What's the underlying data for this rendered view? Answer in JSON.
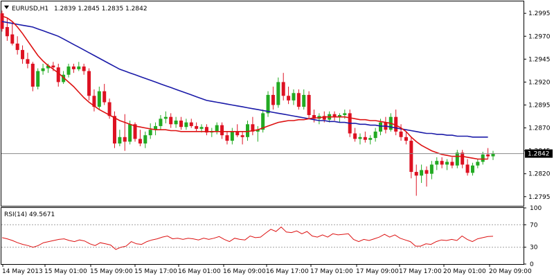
{
  "header": {
    "symbol": "EURUSD,H1",
    "ohlc": "1.2839 1.2845 1.2835 1.2842"
  },
  "colors": {
    "bull": "#22aa22",
    "bear": "#dd1122",
    "ma_fast": "#dd1111",
    "ma_slow": "#1a1aa8",
    "rsi": "#dd1111",
    "current_price_box": "#000000"
  },
  "chart_data": [
    {
      "type": "candlestick",
      "title": "EURUSD,H1",
      "ylim": [
        1.2785,
        1.3008
      ],
      "y_ticks": [
        "1.2995",
        "1.2970",
        "1.2945",
        "1.2920",
        "1.2895",
        "1.2870",
        "1.2845",
        "1.2820",
        "1.2795"
      ],
      "current_price": "1.2842",
      "x_ticks": [
        "14 May 2013",
        "15 May 01:00",
        "15 May 09:00",
        "15 May 17:00",
        "16 May 01:00",
        "16 May 09:00",
        "16 May 17:00",
        "17 May 01:00",
        "17 May 09:00",
        "17 May 17:00",
        "20 May 01:00",
        "20 May 09:00"
      ],
      "candles": [
        [
          1.2995,
          1.2998,
          1.2975,
          1.2978
        ],
        [
          1.298,
          1.299,
          1.2965,
          1.297
        ],
        [
          1.2972,
          1.2985,
          1.296,
          1.2962
        ],
        [
          1.2962,
          1.297,
          1.295,
          1.2955
        ],
        [
          1.2955,
          1.296,
          1.294,
          1.2945
        ],
        [
          1.2945,
          1.2952,
          1.2935,
          1.294
        ],
        [
          1.294,
          1.2942,
          1.291,
          1.2915
        ],
        [
          1.2915,
          1.2935,
          1.2912,
          1.2932
        ],
        [
          1.2932,
          1.294,
          1.2928,
          1.2935
        ],
        [
          1.2935,
          1.294,
          1.293,
          1.2938
        ],
        [
          1.2938,
          1.2942,
          1.2932,
          1.2936
        ],
        [
          1.2936,
          1.294,
          1.2915,
          1.292
        ],
        [
          1.292,
          1.2932,
          1.2918,
          1.2928
        ],
        [
          1.2928,
          1.294,
          1.2925,
          1.2937
        ],
        [
          1.2937,
          1.294,
          1.293,
          1.2934
        ],
        [
          1.2934,
          1.2942,
          1.2932,
          1.2937
        ],
        [
          1.2937,
          1.294,
          1.2928,
          1.2932
        ],
        [
          1.2932,
          1.2935,
          1.29,
          1.2905
        ],
        [
          1.2905,
          1.2912,
          1.2888,
          1.2893
        ],
        [
          1.2893,
          1.2915,
          1.289,
          1.291
        ],
        [
          1.291,
          1.2918,
          1.2895,
          1.2898
        ],
        [
          1.2898,
          1.2902,
          1.288,
          1.2883
        ],
        [
          1.2883,
          1.2888,
          1.2848,
          1.2853
        ],
        [
          1.2853,
          1.2868,
          1.285,
          1.286
        ],
        [
          1.286,
          1.2885,
          1.2845,
          1.2855
        ],
        [
          1.2855,
          1.2878,
          1.2852,
          1.2874
        ],
        [
          1.2874,
          1.2876,
          1.2855,
          1.2858
        ],
        [
          1.2858,
          1.2868,
          1.285,
          1.2853
        ],
        [
          1.2853,
          1.2866,
          1.2848,
          1.2862
        ],
        [
          1.2862,
          1.2875,
          1.2858,
          1.2868
        ],
        [
          1.2868,
          1.2876,
          1.2862,
          1.2872
        ],
        [
          1.2872,
          1.2884,
          1.2868,
          1.288
        ],
        [
          1.288,
          1.2888,
          1.2875,
          1.2882
        ],
        [
          1.2882,
          1.2886,
          1.287,
          1.2874
        ],
        [
          1.2874,
          1.2882,
          1.287,
          1.2878
        ],
        [
          1.2878,
          1.2882,
          1.2868,
          1.2871
        ],
        [
          1.2871,
          1.288,
          1.2868,
          1.2876
        ],
        [
          1.2876,
          1.288,
          1.287,
          1.2872
        ],
        [
          1.2872,
          1.2876,
          1.2866,
          1.2869
        ],
        [
          1.2869,
          1.2874,
          1.2865,
          1.2871
        ],
        [
          1.2871,
          1.2874,
          1.2862,
          1.2865
        ],
        [
          1.2865,
          1.287,
          1.286,
          1.2866
        ],
        [
          1.2866,
          1.2876,
          1.2863,
          1.2873
        ],
        [
          1.2873,
          1.2876,
          1.2858,
          1.2862
        ],
        [
          1.2862,
          1.2866,
          1.2852,
          1.2856
        ],
        [
          1.2856,
          1.287,
          1.2852,
          1.2866
        ],
        [
          1.2866,
          1.2874,
          1.286,
          1.2862
        ],
        [
          1.2862,
          1.2866,
          1.2852,
          1.286
        ],
        [
          1.286,
          1.2878,
          1.2856,
          1.2874
        ],
        [
          1.2874,
          1.2882,
          1.2862,
          1.2866
        ],
        [
          1.2866,
          1.2872,
          1.2855,
          1.2868
        ],
        [
          1.2868,
          1.289,
          1.2865,
          1.2886
        ],
        [
          1.2886,
          1.291,
          1.2882,
          1.2906
        ],
        [
          1.2906,
          1.2915,
          1.289,
          1.2895
        ],
        [
          1.2895,
          1.2925,
          1.2892,
          1.292
        ],
        [
          1.292,
          1.293,
          1.29,
          1.2905
        ],
        [
          1.2905,
          1.2915,
          1.2896,
          1.29
        ],
        [
          1.29,
          1.2912,
          1.2895,
          1.2908
        ],
        [
          1.2908,
          1.2912,
          1.289,
          1.2893
        ],
        [
          1.2893,
          1.2912,
          1.289,
          1.2906
        ],
        [
          1.2906,
          1.291,
          1.288,
          1.2884
        ],
        [
          1.2884,
          1.289,
          1.2876,
          1.288
        ],
        [
          1.288,
          1.2886,
          1.2874,
          1.2883
        ],
        [
          1.2883,
          1.2888,
          1.2876,
          1.2879
        ],
        [
          1.2879,
          1.2888,
          1.2876,
          1.2885
        ],
        [
          1.2885,
          1.2888,
          1.2878,
          1.2882
        ],
        [
          1.2882,
          1.2886,
          1.2876,
          1.2884
        ],
        [
          1.2884,
          1.289,
          1.288,
          1.2886
        ],
        [
          1.2886,
          1.289,
          1.286,
          1.2864
        ],
        [
          1.2864,
          1.287,
          1.2855,
          1.2858
        ],
        [
          1.2858,
          1.2864,
          1.2852,
          1.286
        ],
        [
          1.286,
          1.2866,
          1.2854,
          1.2857
        ],
        [
          1.2857,
          1.2862,
          1.2852,
          1.2859
        ],
        [
          1.2859,
          1.287,
          1.2855,
          1.2866
        ],
        [
          1.2866,
          1.288,
          1.2862,
          1.2876
        ],
        [
          1.2876,
          1.2882,
          1.2864,
          1.2868
        ],
        [
          1.2868,
          1.2886,
          1.2866,
          1.2882
        ],
        [
          1.2882,
          1.289,
          1.2862,
          1.2866
        ],
        [
          1.2866,
          1.2874,
          1.2856,
          1.286
        ],
        [
          1.286,
          1.2866,
          1.2852,
          1.2856
        ],
        [
          1.2856,
          1.286,
          1.2815,
          1.2822
        ],
        [
          1.2822,
          1.283,
          1.2796,
          1.2818
        ],
        [
          1.2818,
          1.283,
          1.281,
          1.2824
        ],
        [
          1.2824,
          1.2828,
          1.2806,
          1.282
        ],
        [
          1.282,
          1.2834,
          1.2814,
          1.283
        ],
        [
          1.283,
          1.2838,
          1.2824,
          1.2834
        ],
        [
          1.2834,
          1.2838,
          1.2826,
          1.283
        ],
        [
          1.283,
          1.2836,
          1.2824,
          1.2833
        ],
        [
          1.2833,
          1.2838,
          1.2826,
          1.2829
        ],
        [
          1.2829,
          1.2846,
          1.2826,
          1.2843
        ],
        [
          1.2843,
          1.2846,
          1.2826,
          1.283
        ],
        [
          1.283,
          1.2836,
          1.2818,
          1.2821
        ],
        [
          1.2821,
          1.2832,
          1.2818,
          1.2829
        ],
        [
          1.2829,
          1.2836,
          1.2826,
          1.2833
        ],
        [
          1.2833,
          1.2844,
          1.283,
          1.2841
        ],
        [
          1.2841,
          1.2848,
          1.2836,
          1.2839
        ],
        [
          1.2839,
          1.2845,
          1.2835,
          1.2842
        ]
      ],
      "ma_fast": [
        1.2992,
        1.299,
        1.2986,
        1.298,
        1.2973,
        1.2965,
        1.2957,
        1.2949,
        1.2943,
        1.2938,
        1.2934,
        1.293,
        1.2925,
        1.292,
        1.2915,
        1.2909,
        1.2903,
        1.2898,
        1.2894,
        1.289,
        1.2887,
        1.2884,
        1.2881,
        1.2878,
        1.2876,
        1.2874,
        1.2872,
        1.2871,
        1.287,
        1.2869,
        1.2868,
        1.2868,
        1.2868,
        1.2867,
        1.2867,
        1.2866,
        1.2866,
        1.2866,
        1.2866,
        1.2866,
        1.2866,
        1.2866,
        1.2866,
        1.2866,
        1.2866,
        1.2866,
        1.2866,
        1.2866,
        1.2866,
        1.2867,
        1.2868,
        1.287,
        1.2872,
        1.2874,
        1.2876,
        1.2877,
        1.2878,
        1.2878,
        1.2879,
        1.2879,
        1.288,
        1.2881,
        1.2881,
        1.2882,
        1.2882,
        1.2882,
        1.2882,
        1.2882,
        1.2881,
        1.288,
        1.2879,
        1.2879,
        1.2878,
        1.2878,
        1.2877,
        1.2876,
        1.2875,
        1.2873,
        1.287,
        1.2866,
        1.286,
        1.2855,
        1.2851,
        1.2848,
        1.2845,
        1.2843,
        1.2841,
        1.284,
        1.2839,
        1.2839,
        1.2839,
        1.2838,
        1.2837,
        1.2836,
        1.2836,
        1.2836
      ],
      "ma_slow": [
        1.2986,
        1.2985,
        1.2984,
        1.2983,
        1.2982,
        1.2981,
        1.298,
        1.2978,
        1.2976,
        1.2974,
        1.2972,
        1.297,
        1.2967,
        1.2964,
        1.2961,
        1.2958,
        1.2955,
        1.2952,
        1.2949,
        1.2946,
        1.2943,
        1.294,
        1.2937,
        1.2934,
        1.2932,
        1.293,
        1.2928,
        1.2926,
        1.2924,
        1.2922,
        1.292,
        1.2918,
        1.2916,
        1.2914,
        1.2912,
        1.291,
        1.2908,
        1.2906,
        1.2904,
        1.2902,
        1.29,
        1.2899,
        1.2898,
        1.2897,
        1.2896,
        1.2895,
        1.2894,
        1.2893,
        1.2892,
        1.2891,
        1.289,
        1.2889,
        1.2888,
        1.2887,
        1.2886,
        1.2885,
        1.2884,
        1.2883,
        1.2882,
        1.2881,
        1.288,
        1.2879,
        1.2878,
        1.2878,
        1.2877,
        1.2877,
        1.2876,
        1.2876,
        1.2875,
        1.2875,
        1.2874,
        1.2874,
        1.2873,
        1.2873,
        1.2872,
        1.2872,
        1.2871,
        1.287,
        1.2869,
        1.2868,
        1.2867,
        1.2866,
        1.2865,
        1.2864,
        1.2864,
        1.2863,
        1.2863,
        1.2862,
        1.2862,
        1.2861,
        1.2861,
        1.2861,
        1.286,
        1.286,
        1.286,
        1.286
      ]
    },
    {
      "type": "line",
      "title": "RSI(14) 49.5671",
      "ylim": [
        0,
        100
      ],
      "y_ticks": [
        "100",
        "70",
        "30",
        "0"
      ],
      "levels": [
        70,
        30
      ],
      "values": [
        47,
        45,
        42,
        38,
        35,
        33,
        30,
        33,
        38,
        40,
        42,
        44,
        45,
        42,
        40,
        43,
        41,
        36,
        33,
        38,
        36,
        34,
        26,
        30,
        32,
        40,
        36,
        35,
        40,
        43,
        45,
        48,
        50,
        45,
        46,
        44,
        46,
        45,
        43,
        46,
        44,
        46,
        49,
        44,
        40,
        46,
        44,
        43,
        50,
        47,
        48,
        55,
        62,
        58,
        66,
        57,
        56,
        59,
        54,
        58,
        50,
        48,
        52,
        48,
        54,
        52,
        53,
        54,
        44,
        40,
        44,
        42,
        45,
        48,
        53,
        48,
        52,
        46,
        43,
        40,
        32,
        32,
        36,
        35,
        40,
        43,
        42,
        44,
        42,
        50,
        44,
        40,
        45,
        47,
        49,
        49.5671
      ]
    }
  ]
}
